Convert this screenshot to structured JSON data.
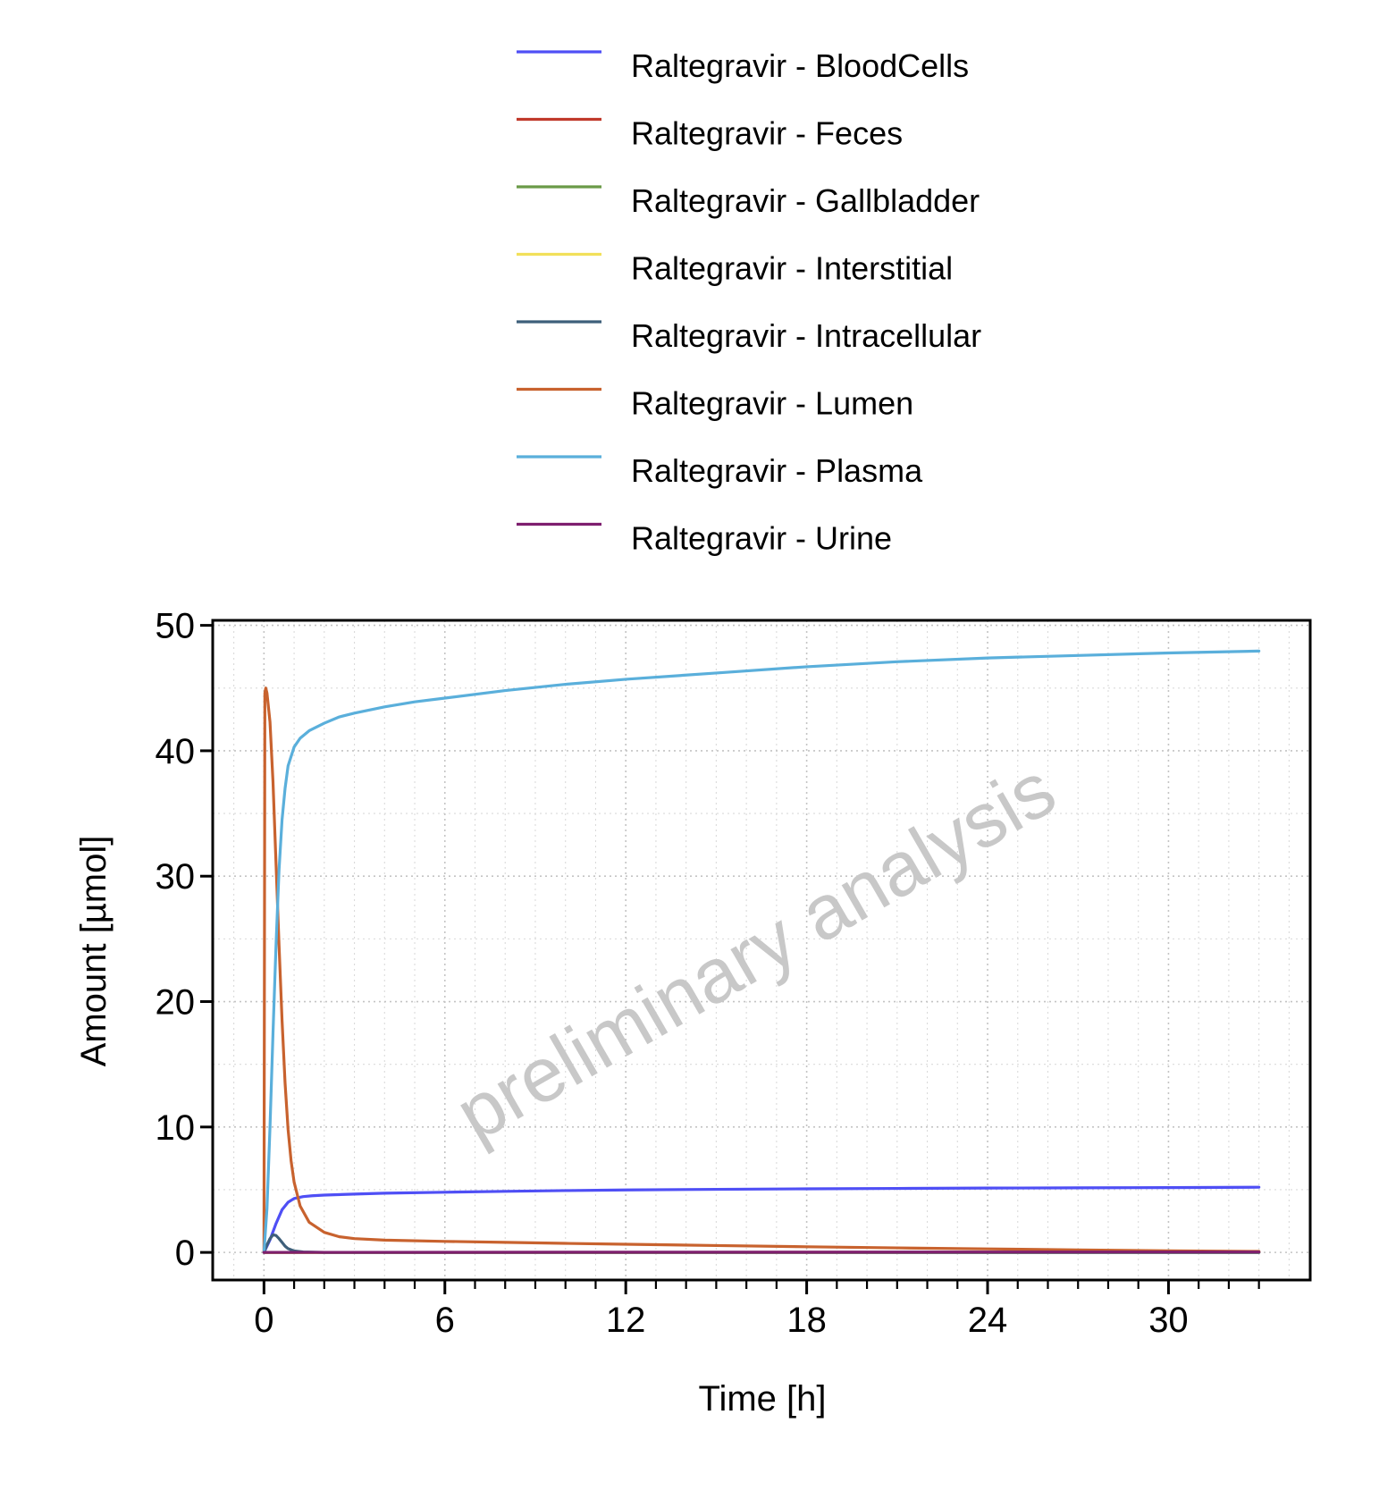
{
  "chart_data": {
    "type": "line",
    "title": "",
    "xlabel": "Time [h]",
    "ylabel": "Amount [µmol]",
    "xlim": [
      -1.7,
      34.7
    ],
    "ylim": [
      -2.2,
      50.4
    ],
    "x_ticks": [
      0,
      6,
      12,
      18,
      24,
      30
    ],
    "x_tick_labels": [
      "0",
      "6",
      "12",
      "18",
      "24",
      "30"
    ],
    "y_ticks": [
      0,
      10,
      20,
      30,
      40,
      50
    ],
    "y_tick_labels": [
      "0",
      "10",
      "20",
      "30",
      "40",
      "50"
    ],
    "x_minor_step": 1,
    "y_minor_step": 5,
    "grid": true,
    "legend_position": "top",
    "watermark": "preliminary analysis",
    "series": [
      {
        "name": "Raltegravir - BloodCells",
        "color": "#4f4ff5",
        "x": [
          0,
          0.2,
          0.4,
          0.6,
          0.8,
          1.0,
          1.3,
          1.6,
          2,
          3,
          4,
          6,
          8,
          10,
          12,
          15,
          18,
          21,
          24,
          27,
          30,
          33
        ],
        "y": [
          0,
          1.0,
          2.3,
          3.4,
          4.0,
          4.3,
          4.45,
          4.52,
          4.57,
          4.65,
          4.72,
          4.8,
          4.87,
          4.93,
          4.98,
          5.03,
          5.07,
          5.1,
          5.13,
          5.15,
          5.17,
          5.2
        ]
      },
      {
        "name": "Raltegravir - Feces",
        "color": "#c0392b",
        "x": [
          0,
          6,
          12,
          18,
          24,
          30,
          33
        ],
        "y": [
          0,
          0,
          0,
          0.01,
          0.01,
          0.02,
          0.02
        ]
      },
      {
        "name": "Raltegravir - Gallbladder",
        "color": "#6a9a48",
        "x": [
          0,
          6,
          12,
          18,
          24,
          30,
          33
        ],
        "y": [
          0,
          0,
          0,
          0,
          0,
          0,
          0
        ]
      },
      {
        "name": "Raltegravir - Interstitial",
        "color": "#f2e05a",
        "x": [
          0,
          6,
          12,
          18,
          24,
          30,
          33
        ],
        "y": [
          0,
          0,
          0,
          0,
          0,
          0,
          0
        ]
      },
      {
        "name": "Raltegravir - Intracellular",
        "color": "#3e5f7a",
        "x": [
          0,
          0.1,
          0.2,
          0.3,
          0.4,
          0.5,
          0.6,
          0.7,
          0.8,
          1.0,
          1.3,
          2,
          33
        ],
        "y": [
          0,
          0.6,
          1.1,
          1.4,
          1.35,
          1.1,
          0.8,
          0.5,
          0.3,
          0.12,
          0.04,
          0,
          0
        ]
      },
      {
        "name": "Raltegravir - Lumen",
        "color": "#c8622e",
        "x": [
          0,
          0.03,
          0.06,
          0.1,
          0.2,
          0.3,
          0.4,
          0.5,
          0.6,
          0.7,
          0.8,
          0.9,
          1.0,
          1.2,
          1.5,
          2,
          2.5,
          3,
          4,
          6,
          8,
          10,
          12,
          15,
          18,
          21,
          24,
          27,
          30,
          33
        ],
        "y": [
          0,
          44.6,
          45.0,
          44.6,
          42.3,
          37.5,
          31.0,
          24.5,
          18.5,
          13.5,
          9.8,
          7.3,
          5.6,
          3.7,
          2.4,
          1.6,
          1.25,
          1.1,
          0.98,
          0.88,
          0.8,
          0.72,
          0.65,
          0.55,
          0.45,
          0.36,
          0.28,
          0.2,
          0.13,
          0.08
        ]
      },
      {
        "name": "Raltegravir - Plasma",
        "color": "#5aafdb",
        "x": [
          0,
          0.1,
          0.2,
          0.3,
          0.4,
          0.5,
          0.6,
          0.7,
          0.8,
          1.0,
          1.2,
          1.5,
          2,
          2.5,
          3,
          4,
          5,
          6,
          8,
          10,
          12,
          15,
          18,
          21,
          24,
          27,
          30,
          33
        ],
        "y": [
          0,
          3.5,
          10,
          17.5,
          24.5,
          30.5,
          34.5,
          37.0,
          38.8,
          40.3,
          41.0,
          41.6,
          42.2,
          42.7,
          43.0,
          43.5,
          43.9,
          44.2,
          44.8,
          45.3,
          45.7,
          46.2,
          46.7,
          47.1,
          47.4,
          47.6,
          47.8,
          47.95
        ]
      },
      {
        "name": "Raltegravir - Urine",
        "color": "#7e1f6e",
        "x": [
          0,
          6,
          12,
          18,
          24,
          30,
          33
        ],
        "y": [
          0,
          0.01,
          0.02,
          0.02,
          0.03,
          0.03,
          0.03
        ]
      }
    ]
  }
}
